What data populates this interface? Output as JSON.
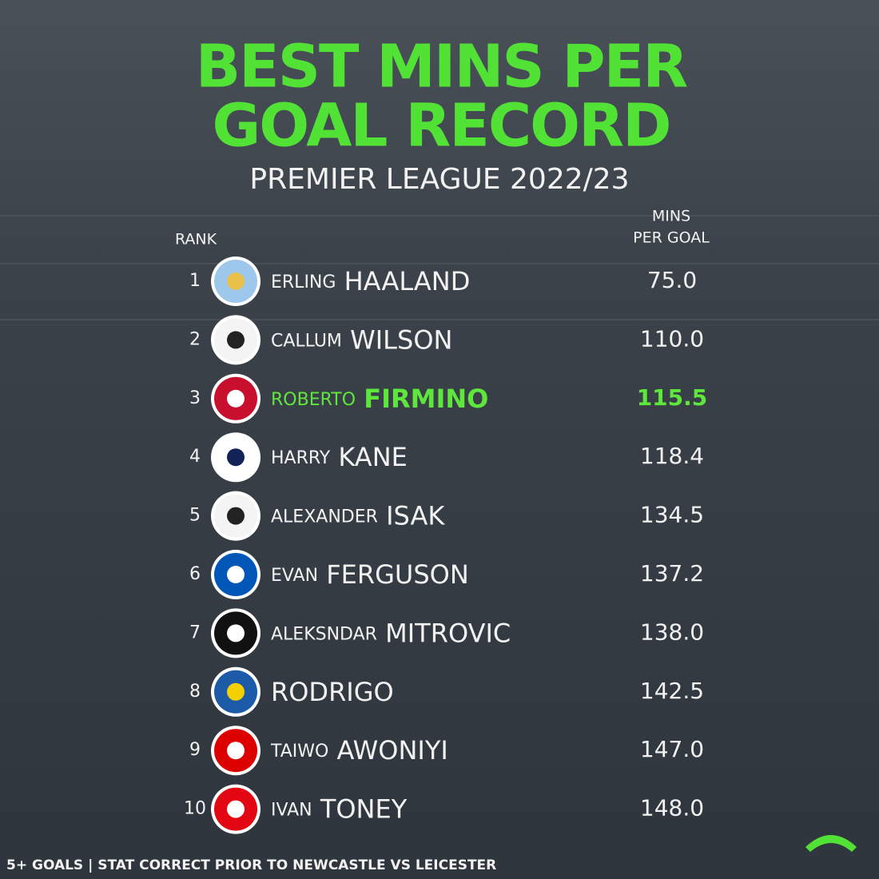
{
  "title_lines": [
    "BEST MINS PER",
    "GOAL RECORD"
  ],
  "subtitle": "PREMIER LEAGUE 2022/23",
  "table": {
    "headers": {
      "rank": "RANK",
      "mins": [
        "MINS",
        "PER GOAL"
      ]
    },
    "highlight_color": "#5fe63c",
    "rows": [
      {
        "rank": 1,
        "first": "ERLING",
        "last": "HAALAND",
        "mins": "75.0"
      },
      {
        "rank": 2,
        "first": "CALLUM",
        "last": "WILSON",
        "mins": "110.0"
      },
      {
        "rank": 3,
        "first": "ROBERTO",
        "last": "FIRMINO",
        "mins": "115.5",
        "highlight": true
      },
      {
        "rank": 4,
        "first": "HARRY",
        "last": "KANE",
        "mins": "118.4"
      },
      {
        "rank": 5,
        "first": "ALEXANDER",
        "last": "ISAK",
        "mins": "134.5"
      },
      {
        "rank": 6,
        "first": "EVAN",
        "last": "FERGUSON",
        "mins": "137.2"
      },
      {
        "rank": 7,
        "first": "ALEKSNDAR",
        "last": "MITROVIC",
        "mins": "138.0"
      },
      {
        "rank": 8,
        "first": "",
        "last": "RODRIGO",
        "mins": "142.5"
      },
      {
        "rank": 9,
        "first": "TAIWO",
        "last": "AWONIYI",
        "mins": "147.0"
      },
      {
        "rank": 10,
        "first": "IVAN",
        "last": "TONEY",
        "mins": "148.0"
      }
    ]
  },
  "footer": "5+ GOALS | STAT CORRECT PRIOR TO NEWCASTLE VS LEICESTER"
}
